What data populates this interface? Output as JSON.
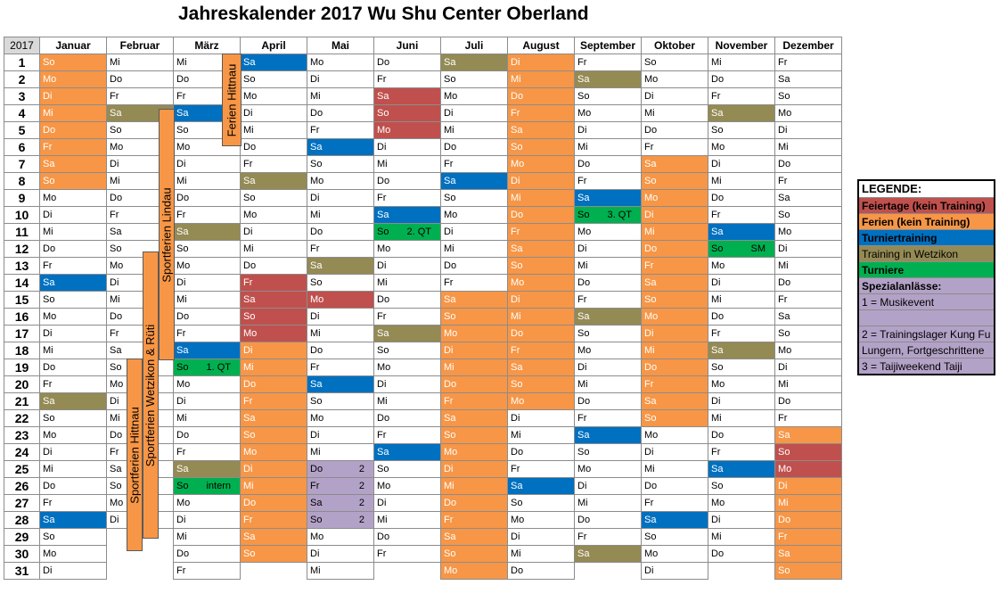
{
  "title": "Jahreskalender 2017 Wu Shu Center Oberland",
  "year": "2017",
  "months": [
    "Januar",
    "Februar",
    "März",
    "April",
    "Mai",
    "Juni",
    "Juli",
    "August",
    "September",
    "Oktober",
    "November",
    "Dezember"
  ],
  "rows": [
    [
      [
        "So",
        "F"
      ],
      [
        "Mi",
        ""
      ],
      [
        "Mi",
        ""
      ],
      [
        "Sa",
        "T"
      ],
      [
        "Mo",
        ""
      ],
      [
        "Do",
        ""
      ],
      [
        "Sa",
        "W"
      ],
      [
        "Di",
        "F"
      ],
      [
        "Fr",
        ""
      ],
      [
        "So",
        ""
      ],
      [
        "Mi",
        ""
      ],
      [
        "Fr",
        ""
      ]
    ],
    [
      [
        "Mo",
        "F"
      ],
      [
        "Do",
        ""
      ],
      [
        "Do",
        ""
      ],
      [
        "So",
        ""
      ],
      [
        "Di",
        ""
      ],
      [
        "Fr",
        ""
      ],
      [
        "So",
        ""
      ],
      [
        "Mi",
        "F"
      ],
      [
        "Sa",
        "W"
      ],
      [
        "Mo",
        ""
      ],
      [
        "Do",
        ""
      ],
      [
        "Sa",
        ""
      ]
    ],
    [
      [
        "Di",
        "F"
      ],
      [
        "Fr",
        ""
      ],
      [
        "Fr",
        ""
      ],
      [
        "Mo",
        ""
      ],
      [
        "Mi",
        ""
      ],
      [
        "Sa",
        "H"
      ],
      [
        "Mo",
        ""
      ],
      [
        "Do",
        "F"
      ],
      [
        "So",
        ""
      ],
      [
        "Di",
        ""
      ],
      [
        "Fr",
        ""
      ],
      [
        "So",
        ""
      ]
    ],
    [
      [
        "Mi",
        "F"
      ],
      [
        "Sa",
        "W"
      ],
      [
        "Sa",
        "T"
      ],
      [
        "Di",
        ""
      ],
      [
        "Do",
        ""
      ],
      [
        "So",
        "H"
      ],
      [
        "Di",
        ""
      ],
      [
        "Fr",
        "F"
      ],
      [
        "Mo",
        ""
      ],
      [
        "Mi",
        ""
      ],
      [
        "Sa",
        "W"
      ],
      [
        "Mo",
        ""
      ]
    ],
    [
      [
        "Do",
        "F"
      ],
      [
        "So",
        ""
      ],
      [
        "So",
        ""
      ],
      [
        "Mi",
        ""
      ],
      [
        "Fr",
        ""
      ],
      [
        "Mo",
        "H"
      ],
      [
        "Mi",
        ""
      ],
      [
        "Sa",
        "F"
      ],
      [
        "Di",
        ""
      ],
      [
        "Do",
        ""
      ],
      [
        "So",
        ""
      ],
      [
        "Di",
        ""
      ]
    ],
    [
      [
        "Fr",
        "F"
      ],
      [
        "Mo",
        ""
      ],
      [
        "Mo",
        ""
      ],
      [
        "Do",
        ""
      ],
      [
        "Sa",
        "T"
      ],
      [
        "Di",
        ""
      ],
      [
        "Do",
        ""
      ],
      [
        "So",
        "F"
      ],
      [
        "Mi",
        ""
      ],
      [
        "Fr",
        ""
      ],
      [
        "Mo",
        ""
      ],
      [
        "Mi",
        ""
      ]
    ],
    [
      [
        "Sa",
        "F"
      ],
      [
        "Di",
        ""
      ],
      [
        "Di",
        ""
      ],
      [
        "Fr",
        ""
      ],
      [
        "So",
        ""
      ],
      [
        "Mi",
        ""
      ],
      [
        "Fr",
        ""
      ],
      [
        "Mo",
        "F"
      ],
      [
        "Do",
        ""
      ],
      [
        "Sa",
        "F"
      ],
      [
        "Di",
        ""
      ],
      [
        "Do",
        ""
      ]
    ],
    [
      [
        "So",
        "F"
      ],
      [
        "Mi",
        ""
      ],
      [
        "Mi",
        ""
      ],
      [
        "Sa",
        "W"
      ],
      [
        "Mo",
        ""
      ],
      [
        "Do",
        ""
      ],
      [
        "Sa",
        "T"
      ],
      [
        "Di",
        "F"
      ],
      [
        "Fr",
        ""
      ],
      [
        "So",
        "F"
      ],
      [
        "Mi",
        ""
      ],
      [
        "Fr",
        ""
      ]
    ],
    [
      [
        "Mo",
        ""
      ],
      [
        "Do",
        ""
      ],
      [
        "Do",
        ""
      ],
      [
        "So",
        ""
      ],
      [
        "Di",
        ""
      ],
      [
        "Fr",
        ""
      ],
      [
        "So",
        ""
      ],
      [
        "Mi",
        "F"
      ],
      [
        "Sa",
        "T"
      ],
      [
        "Mo",
        "F"
      ],
      [
        "Do",
        ""
      ],
      [
        "Sa",
        ""
      ]
    ],
    [
      [
        "Di",
        ""
      ],
      [
        "Fr",
        ""
      ],
      [
        "Fr",
        ""
      ],
      [
        "Mo",
        ""
      ],
      [
        "Mi",
        ""
      ],
      [
        "Sa",
        "T"
      ],
      [
        "Mo",
        ""
      ],
      [
        "Do",
        "F"
      ],
      [
        "So",
        "U",
        "3. QT"
      ],
      [
        "Di",
        "F"
      ],
      [
        "Fr",
        ""
      ],
      [
        "So",
        ""
      ]
    ],
    [
      [
        "Mi",
        ""
      ],
      [
        "Sa",
        ""
      ],
      [
        "Sa",
        "W"
      ],
      [
        "Di",
        ""
      ],
      [
        "Do",
        ""
      ],
      [
        "So",
        "U",
        "2. QT"
      ],
      [
        "Di",
        ""
      ],
      [
        "Fr",
        "F"
      ],
      [
        "Mo",
        ""
      ],
      [
        "Mi",
        "F"
      ],
      [
        "Sa",
        "T"
      ],
      [
        "Mo",
        ""
      ]
    ],
    [
      [
        "Do",
        ""
      ],
      [
        "So",
        ""
      ],
      [
        "So",
        ""
      ],
      [
        "Mi",
        ""
      ],
      [
        "Fr",
        ""
      ],
      [
        "Mo",
        ""
      ],
      [
        "Mi",
        ""
      ],
      [
        "Sa",
        "F"
      ],
      [
        "Di",
        ""
      ],
      [
        "Do",
        "F"
      ],
      [
        "So",
        "U",
        "SM"
      ],
      [
        "Di",
        ""
      ]
    ],
    [
      [
        "Fr",
        ""
      ],
      [
        "Mo",
        ""
      ],
      [
        "Mo",
        ""
      ],
      [
        "Do",
        ""
      ],
      [
        "Sa",
        "W"
      ],
      [
        "Di",
        ""
      ],
      [
        "Do",
        ""
      ],
      [
        "So",
        "F"
      ],
      [
        "Mi",
        ""
      ],
      [
        "Fr",
        "F"
      ],
      [
        "Mo",
        ""
      ],
      [
        "Mi",
        ""
      ]
    ],
    [
      [
        "Sa",
        "T"
      ],
      [
        "Di",
        ""
      ],
      [
        "Di",
        ""
      ],
      [
        "Fr",
        "H"
      ],
      [
        "So",
        ""
      ],
      [
        "Mi",
        ""
      ],
      [
        "Fr",
        ""
      ],
      [
        "Mo",
        "F"
      ],
      [
        "Do",
        ""
      ],
      [
        "Sa",
        "F"
      ],
      [
        "Di",
        ""
      ],
      [
        "Do",
        ""
      ]
    ],
    [
      [
        "So",
        ""
      ],
      [
        "Mi",
        ""
      ],
      [
        "Mi",
        ""
      ],
      [
        "Sa",
        "H"
      ],
      [
        "Mo",
        "H"
      ],
      [
        "Do",
        ""
      ],
      [
        "Sa",
        "F"
      ],
      [
        "Di",
        "F"
      ],
      [
        "Fr",
        ""
      ],
      [
        "So",
        "F"
      ],
      [
        "Mi",
        ""
      ],
      [
        "Fr",
        ""
      ]
    ],
    [
      [
        "Mo",
        ""
      ],
      [
        "Do",
        ""
      ],
      [
        "Do",
        ""
      ],
      [
        "So",
        "H"
      ],
      [
        "Di",
        ""
      ],
      [
        "Fr",
        ""
      ],
      [
        "So",
        "F"
      ],
      [
        "Mi",
        "F"
      ],
      [
        "Sa",
        "W"
      ],
      [
        "Mo",
        "F"
      ],
      [
        "Do",
        ""
      ],
      [
        "Sa",
        ""
      ]
    ],
    [
      [
        "Di",
        ""
      ],
      [
        "Fr",
        ""
      ],
      [
        "Fr",
        ""
      ],
      [
        "Mo",
        "H"
      ],
      [
        "Mi",
        ""
      ],
      [
        "Sa",
        "W"
      ],
      [
        "Mo",
        "F"
      ],
      [
        "Do",
        "F"
      ],
      [
        "So",
        ""
      ],
      [
        "Di",
        "F"
      ],
      [
        "Fr",
        ""
      ],
      [
        "So",
        ""
      ]
    ],
    [
      [
        "Mi",
        ""
      ],
      [
        "Sa",
        ""
      ],
      [
        "Sa",
        "T"
      ],
      [
        "Di",
        "F"
      ],
      [
        "Do",
        ""
      ],
      [
        "So",
        ""
      ],
      [
        "Di",
        "F"
      ],
      [
        "Fr",
        "F"
      ],
      [
        "Mo",
        ""
      ],
      [
        "Mi",
        "F"
      ],
      [
        "Sa",
        "W"
      ],
      [
        "Mo",
        ""
      ]
    ],
    [
      [
        "Do",
        ""
      ],
      [
        "So",
        ""
      ],
      [
        "So",
        "U",
        "1. QT"
      ],
      [
        "Mi",
        "F"
      ],
      [
        "Fr",
        ""
      ],
      [
        "Mo",
        ""
      ],
      [
        "Mi",
        "F"
      ],
      [
        "Sa",
        "F"
      ],
      [
        "Di",
        ""
      ],
      [
        "Do",
        "F"
      ],
      [
        "So",
        ""
      ],
      [
        "Di",
        ""
      ]
    ],
    [
      [
        "Fr",
        ""
      ],
      [
        "Mo",
        ""
      ],
      [
        "Mo",
        ""
      ],
      [
        "Do",
        "F"
      ],
      [
        "Sa",
        "T"
      ],
      [
        "Di",
        ""
      ],
      [
        "Do",
        "F"
      ],
      [
        "So",
        "F"
      ],
      [
        "Mi",
        ""
      ],
      [
        "Fr",
        "F"
      ],
      [
        "Mo",
        ""
      ],
      [
        "Mi",
        ""
      ]
    ],
    [
      [
        "Sa",
        "W"
      ],
      [
        "Di",
        ""
      ],
      [
        "Di",
        ""
      ],
      [
        "Fr",
        "F"
      ],
      [
        "So",
        ""
      ],
      [
        "Mi",
        ""
      ],
      [
        "Fr",
        "F"
      ],
      [
        "Mo",
        "F"
      ],
      [
        "Do",
        ""
      ],
      [
        "Sa",
        "F"
      ],
      [
        "Di",
        ""
      ],
      [
        "Do",
        ""
      ]
    ],
    [
      [
        "So",
        ""
      ],
      [
        "Mi",
        ""
      ],
      [
        "Mi",
        ""
      ],
      [
        "Sa",
        "F"
      ],
      [
        "Mo",
        ""
      ],
      [
        "Do",
        ""
      ],
      [
        "Sa",
        "F"
      ],
      [
        "Di",
        ""
      ],
      [
        "Fr",
        ""
      ],
      [
        "So",
        "F"
      ],
      [
        "Mi",
        ""
      ],
      [
        "Fr",
        ""
      ]
    ],
    [
      [
        "Mo",
        ""
      ],
      [
        "Do",
        ""
      ],
      [
        "Do",
        ""
      ],
      [
        "So",
        "F"
      ],
      [
        "Di",
        ""
      ],
      [
        "Fr",
        ""
      ],
      [
        "So",
        "F"
      ],
      [
        "Mi",
        ""
      ],
      [
        "Sa",
        "T"
      ],
      [
        "Mo",
        ""
      ],
      [
        "Do",
        ""
      ],
      [
        "Sa",
        "F"
      ]
    ],
    [
      [
        "Di",
        ""
      ],
      [
        "Fr",
        ""
      ],
      [
        "Fr",
        ""
      ],
      [
        "Mo",
        "F"
      ],
      [
        "Mi",
        ""
      ],
      [
        "Sa",
        "T"
      ],
      [
        "Mo",
        "F"
      ],
      [
        "Do",
        ""
      ],
      [
        "So",
        ""
      ],
      [
        "Di",
        ""
      ],
      [
        "Fr",
        ""
      ],
      [
        "So",
        "H"
      ]
    ],
    [
      [
        "Mi",
        ""
      ],
      [
        "Sa",
        ""
      ],
      [
        "Sa",
        "W"
      ],
      [
        "Di",
        "F"
      ],
      [
        "Do",
        "S",
        "2"
      ],
      [
        "So",
        ""
      ],
      [
        "Di",
        "F"
      ],
      [
        "Fr",
        ""
      ],
      [
        "Mo",
        ""
      ],
      [
        "Mi",
        ""
      ],
      [
        "Sa",
        "T"
      ],
      [
        "Mo",
        "H"
      ]
    ],
    [
      [
        "Do",
        ""
      ],
      [
        "So",
        ""
      ],
      [
        "So",
        "U",
        "intern"
      ],
      [
        "Mi",
        "F"
      ],
      [
        "Fr",
        "S",
        "2"
      ],
      [
        "Mo",
        ""
      ],
      [
        "Mi",
        "F"
      ],
      [
        "Sa",
        "T"
      ],
      [
        "Di",
        ""
      ],
      [
        "Do",
        ""
      ],
      [
        "So",
        ""
      ],
      [
        "Di",
        "F"
      ]
    ],
    [
      [
        "Fr",
        ""
      ],
      [
        "Mo",
        ""
      ],
      [
        "Mo",
        ""
      ],
      [
        "Do",
        "F"
      ],
      [
        "Sa",
        "S",
        "2"
      ],
      [
        "Di",
        ""
      ],
      [
        "Do",
        "F"
      ],
      [
        "So",
        ""
      ],
      [
        "Mi",
        ""
      ],
      [
        "Fr",
        ""
      ],
      [
        "Mo",
        ""
      ],
      [
        "Mi",
        "F"
      ]
    ],
    [
      [
        "Sa",
        "T"
      ],
      [
        "Di",
        ""
      ],
      [
        "Di",
        ""
      ],
      [
        "Fr",
        "F"
      ],
      [
        "So",
        "S",
        "2"
      ],
      [
        "Mi",
        ""
      ],
      [
        "Fr",
        "F"
      ],
      [
        "Mo",
        ""
      ],
      [
        "Do",
        ""
      ],
      [
        "Sa",
        "T"
      ],
      [
        "Di",
        ""
      ],
      [
        "Do",
        "F"
      ]
    ],
    [
      [
        "So",
        ""
      ],
      null,
      [
        "Mi",
        ""
      ],
      [
        "Sa",
        "F"
      ],
      [
        "Mo",
        ""
      ],
      [
        "Do",
        ""
      ],
      [
        "Sa",
        "F"
      ],
      [
        "Di",
        ""
      ],
      [
        "Fr",
        ""
      ],
      [
        "So",
        ""
      ],
      [
        "Mi",
        ""
      ],
      [
        "Fr",
        "F"
      ]
    ],
    [
      [
        "Mo",
        ""
      ],
      null,
      [
        "Do",
        ""
      ],
      [
        "So",
        "F"
      ],
      [
        "Di",
        ""
      ],
      [
        "Fr",
        ""
      ],
      [
        "So",
        "F"
      ],
      [
        "Mi",
        ""
      ],
      [
        "Sa",
        "W"
      ],
      [
        "Mo",
        ""
      ],
      [
        "Do",
        ""
      ],
      [
        "Sa",
        "F"
      ]
    ],
    [
      [
        "Di",
        ""
      ],
      null,
      [
        "Fr",
        ""
      ],
      null,
      [
        "Mi",
        ""
      ],
      null,
      [
        "Mo",
        "F"
      ],
      [
        "Do",
        ""
      ],
      null,
      [
        "Di",
        ""
      ],
      null,
      [
        "So",
        "F"
      ]
    ]
  ],
  "vertical_labels": {
    "ferien_hittnau_top": "Ferien Hittnau",
    "sportferien_lindau": "Sportferien Lindau",
    "sportferien_wetzikon": "Sportferien Wetzikon & Rüti",
    "sportferien_hittnau": "Sportferien Hittnau"
  },
  "legend": {
    "header": "LEGENDE:",
    "items": [
      {
        "label": "Feiertage (kein Training)",
        "bold": true,
        "color": "#c0504d"
      },
      {
        "label": "Ferien (kein Training)",
        "bold": true,
        "color": "#f79646"
      },
      {
        "label": "Turniertraining",
        "bold": true,
        "color": "#0070c0"
      },
      {
        "label": "Training in Wetzikon",
        "bold": false,
        "color": "#948a54"
      },
      {
        "label": "Turniere",
        "bold": true,
        "color": "#00b050"
      },
      {
        "label": "Spezialanlässe:",
        "bold": true,
        "color": "#b3a2c7"
      },
      {
        "label": "1 =  Musikevent",
        "bold": false,
        "color": "#b3a2c7"
      },
      {
        "label": "",
        "bold": false,
        "color": "#b3a2c7"
      },
      {
        "label": "2 = Trainingslager Kung Fu",
        "bold": false,
        "color": "#b3a2c7"
      },
      {
        "label": "Lungern, Fortgeschrittene",
        "bold": false,
        "color": "#b3a2c7"
      },
      {
        "label": "3 = Taijiweekend Taiji",
        "bold": false,
        "color": "#b3a2c7"
      }
    ]
  },
  "colors": {
    "feiertag": "#c0504d",
    "ferien": "#f79646",
    "turniertraining": "#0070c0",
    "wetzikon": "#948a54",
    "turnier": "#00b050",
    "spezial": "#b3a2c7"
  }
}
